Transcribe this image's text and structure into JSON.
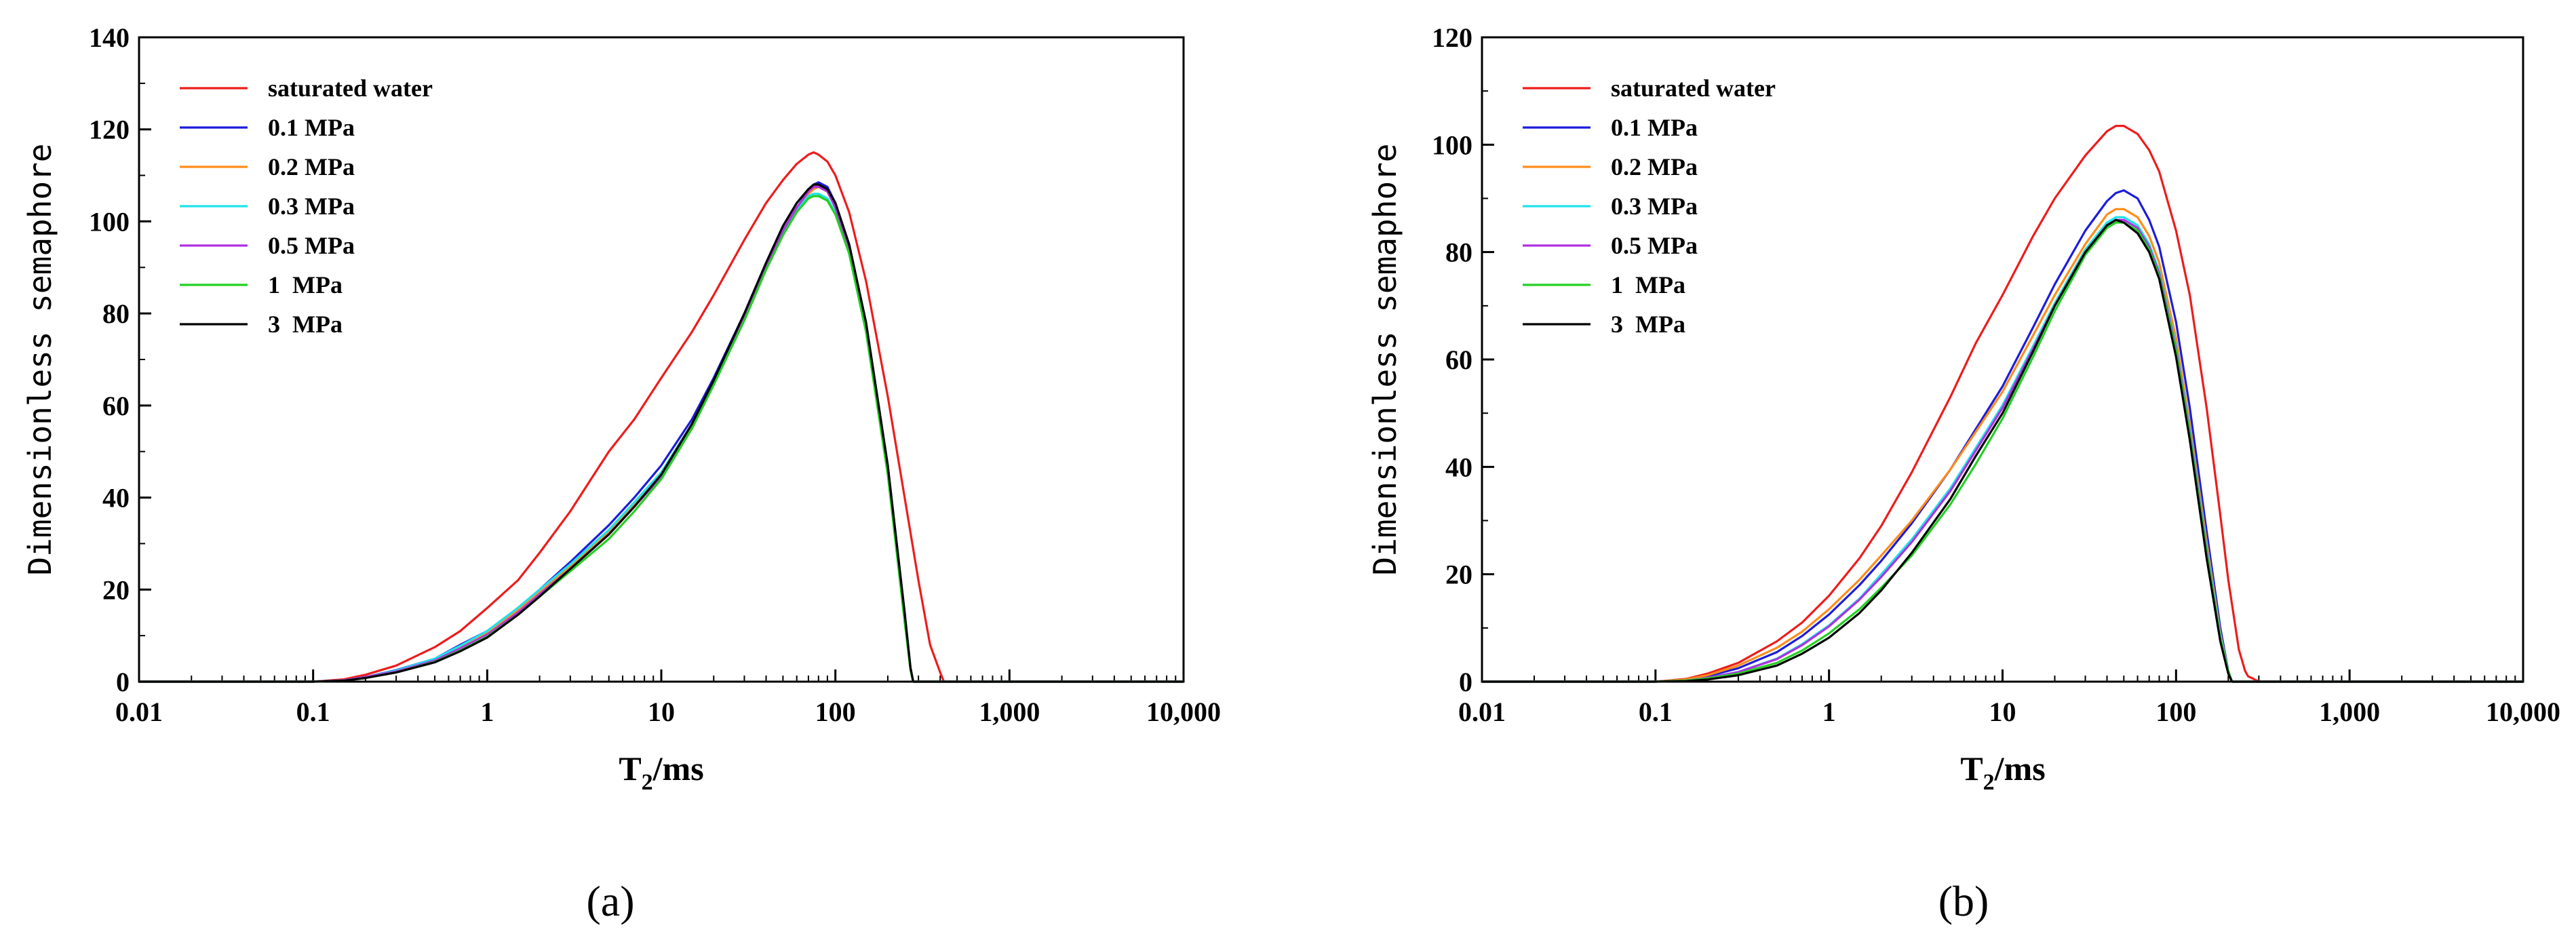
{
  "chart_data": [
    {
      "type": "line",
      "panel_label": "(a)",
      "xscale": "log",
      "xlim": [
        0.01,
        10000
      ],
      "ylim": [
        0,
        140
      ],
      "xlabel": "T2/ms",
      "xlabel_main": "T",
      "xlabel_sub": "2",
      "xlabel_rest": "/ms",
      "ylabel": "Dimensionless semaphore",
      "xticks": [
        0.01,
        0.1,
        1,
        10,
        100,
        1000,
        10000
      ],
      "xtick_labels": [
        "0.01",
        "0.1",
        "1",
        "10",
        "100",
        "1,000",
        "10,000"
      ],
      "yticks": [
        0,
        20,
        40,
        60,
        80,
        100,
        120,
        140
      ],
      "ytick_labels": [
        "0",
        "20",
        "40",
        "60",
        "80",
        "100",
        "120",
        "140"
      ],
      "legend_position": "top-left",
      "series": [
        {
          "name": "saturated water",
          "color": "#ee1c1c",
          "x": [
            0.01,
            0.1,
            0.15,
            0.2,
            0.3,
            0.5,
            0.7,
            1,
            1.5,
            2,
            3,
            5,
            7,
            10,
            15,
            20,
            30,
            40,
            50,
            60,
            70,
            75,
            80,
            90,
            100,
            120,
            150,
            200,
            250,
            300,
            350,
            400,
            420,
            500,
            1000,
            10000
          ],
          "y": [
            0,
            0,
            0.5,
            1.5,
            3.5,
            7.5,
            11,
            16,
            22,
            28,
            37,
            50,
            57,
            66,
            76,
            84,
            96,
            104,
            109,
            112.5,
            114.5,
            115,
            114.5,
            113,
            110,
            102,
            87,
            62,
            40,
            22,
            8,
            2,
            0,
            0,
            0,
            0
          ]
        },
        {
          "name": "0.1 MPa",
          "color": "#1c1cdc",
          "x": [
            0.01,
            0.1,
            0.15,
            0.2,
            0.3,
            0.5,
            0.7,
            1,
            1.5,
            2,
            3,
            5,
            7,
            10,
            15,
            20,
            30,
            40,
            50,
            60,
            70,
            75,
            80,
            90,
            100,
            120,
            150,
            200,
            250,
            270,
            280,
            300,
            1000,
            10000
          ],
          "y": [
            0,
            0,
            0.3,
            1,
            2.5,
            5,
            8,
            11,
            16,
            20,
            26,
            34,
            40,
            47,
            57,
            66,
            80,
            91,
            99,
            104,
            107,
            108,
            108.5,
            107.5,
            104,
            95,
            78,
            47,
            15,
            3,
            0,
            0,
            0,
            0
          ]
        },
        {
          "name": "0.2 MPa",
          "color": "#ff8c1a",
          "x": [
            0.01,
            0.1,
            0.15,
            0.2,
            0.3,
            0.5,
            0.7,
            1,
            1.5,
            2,
            3,
            5,
            7,
            10,
            15,
            20,
            30,
            40,
            50,
            60,
            70,
            75,
            80,
            90,
            100,
            120,
            150,
            200,
            250,
            270,
            280,
            300,
            1000,
            10000
          ],
          "y": [
            0,
            0,
            0.3,
            1,
            2.3,
            4.8,
            7.5,
            10.5,
            15.5,
            19.5,
            25,
            32.5,
            38.5,
            45,
            55.5,
            65,
            79,
            90,
            98,
            103,
            106,
            107,
            107.5,
            106.5,
            103,
            94,
            77,
            46,
            14,
            3,
            0,
            0,
            0,
            0
          ]
        },
        {
          "name": "0.3 MPa",
          "color": "#1ee3e8",
          "x": [
            0.01,
            0.1,
            0.15,
            0.2,
            0.3,
            0.5,
            0.7,
            1,
            1.5,
            2,
            3,
            5,
            7,
            10,
            15,
            20,
            30,
            40,
            50,
            60,
            70,
            75,
            80,
            90,
            100,
            120,
            150,
            200,
            250,
            270,
            280,
            300,
            1000,
            10000
          ],
          "y": [
            0,
            0,
            0.3,
            1,
            2.4,
            5,
            7.8,
            11,
            16,
            20,
            25.5,
            33,
            39,
            45.5,
            56,
            65,
            79,
            90,
            97.5,
            102.5,
            105.5,
            106,
            106,
            105,
            102,
            93,
            76,
            46,
            14,
            3,
            0,
            0,
            0,
            0
          ]
        },
        {
          "name": "0.5 MPa",
          "color": "#b030e0",
          "x": [
            0.01,
            0.1,
            0.15,
            0.2,
            0.3,
            0.5,
            0.7,
            1,
            1.5,
            2,
            3,
            5,
            7,
            10,
            15,
            20,
            30,
            40,
            50,
            60,
            70,
            75,
            80,
            90,
            100,
            120,
            150,
            200,
            250,
            270,
            280,
            300,
            1000,
            10000
          ],
          "y": [
            0,
            0,
            0.3,
            1,
            2.2,
            4.6,
            7.2,
            10.2,
            15,
            19,
            24.5,
            32,
            38,
            44.5,
            55,
            64.5,
            79,
            90,
            98,
            103,
            106.5,
            107.5,
            107.5,
            106.5,
            103,
            94,
            77,
            46,
            14,
            3,
            0,
            0,
            0,
            0
          ]
        },
        {
          "name": "1  MPa",
          "color": "#22d022",
          "x": [
            0.01,
            0.1,
            0.15,
            0.2,
            0.3,
            0.5,
            0.7,
            1,
            1.5,
            2,
            3,
            5,
            7,
            10,
            15,
            20,
            30,
            40,
            50,
            60,
            70,
            75,
            80,
            90,
            100,
            120,
            150,
            200,
            250,
            270,
            280,
            300,
            1000,
            10000
          ],
          "y": [
            0,
            0,
            0.2,
            0.8,
            2,
            4.3,
            6.8,
            9.8,
            14.5,
            18.5,
            24,
            31,
            37,
            44,
            55,
            64.5,
            78.5,
            89.5,
            97,
            102,
            105,
            105.5,
            105.5,
            104.5,
            101.5,
            93,
            76,
            45,
            13,
            2.5,
            0,
            0,
            0,
            0
          ]
        },
        {
          "name": "3  MPa",
          "color": "#000000",
          "x": [
            0.01,
            0.1,
            0.15,
            0.2,
            0.3,
            0.5,
            0.7,
            1,
            1.5,
            2,
            3,
            5,
            7,
            10,
            15,
            20,
            30,
            40,
            50,
            60,
            70,
            75,
            80,
            90,
            100,
            120,
            150,
            200,
            250,
            270,
            280,
            300,
            1000,
            10000
          ],
          "y": [
            0,
            0,
            0.2,
            0.8,
            2,
            4.2,
            6.6,
            9.6,
            14.5,
            18.5,
            24.5,
            32,
            38,
            45,
            56,
            65.5,
            80,
            91,
            99,
            104,
            107,
            108,
            108,
            107,
            104,
            95,
            78,
            47,
            15,
            3,
            0,
            0,
            0,
            0
          ]
        }
      ]
    },
    {
      "type": "line",
      "panel_label": "(b)",
      "xscale": "log",
      "xlim": [
        0.01,
        10000
      ],
      "ylim": [
        0,
        120
      ],
      "xlabel": "T2/ms",
      "xlabel_main": "T",
      "xlabel_sub": "2",
      "xlabel_rest": "/ms",
      "ylabel": "Dimensionless semaphore",
      "xticks": [
        0.01,
        0.1,
        1,
        10,
        100,
        1000,
        10000
      ],
      "xtick_labels": [
        "0.01",
        "0.1",
        "1",
        "10",
        "100",
        "1,000",
        "10,000"
      ],
      "yticks": [
        0,
        20,
        40,
        60,
        80,
        100,
        120
      ],
      "ytick_labels": [
        "0",
        "20",
        "40",
        "60",
        "80",
        "100",
        "120"
      ],
      "legend_position": "top-left",
      "series": [
        {
          "name": "saturated water",
          "color": "#ee1c1c",
          "x": [
            0.01,
            0.1,
            0.15,
            0.2,
            0.3,
            0.5,
            0.7,
            1,
            1.5,
            2,
            3,
            5,
            7,
            10,
            15,
            20,
            30,
            40,
            45,
            50,
            60,
            70,
            80,
            100,
            120,
            150,
            180,
            200,
            230,
            250,
            260,
            280,
            300,
            1000,
            10000
          ],
          "y": [
            0,
            0,
            0.5,
            1.5,
            3.5,
            7.5,
            11,
            16,
            23,
            29,
            39,
            53,
            63,
            72,
            83,
            90,
            98,
            102.5,
            103.5,
            103.5,
            102,
            99,
            95,
            84,
            72,
            51,
            31,
            19,
            6,
            2,
            1,
            0.5,
            0,
            0,
            0
          ]
        },
        {
          "name": "0.1 MPa",
          "color": "#1c1cdc",
          "x": [
            0.01,
            0.1,
            0.15,
            0.2,
            0.3,
            0.5,
            0.7,
            1,
            1.5,
            2,
            3,
            5,
            7,
            10,
            15,
            20,
            30,
            40,
            45,
            50,
            60,
            70,
            80,
            100,
            120,
            150,
            180,
            200,
            210,
            1000,
            10000
          ],
          "y": [
            0,
            0,
            0.3,
            1,
            2.5,
            5.5,
            8.5,
            12.5,
            18,
            22.5,
            29.5,
            39.5,
            47,
            55,
            66,
            74,
            84,
            89.5,
            91,
            91.5,
            90,
            86,
            81,
            67,
            51,
            28,
            10,
            2,
            0,
            0,
            0
          ]
        },
        {
          "name": "0.2 MPa",
          "color": "#ff8c1a",
          "x": [
            0.01,
            0.1,
            0.15,
            0.2,
            0.3,
            0.5,
            0.7,
            1,
            1.5,
            2,
            3,
            5,
            7,
            10,
            15,
            20,
            30,
            40,
            45,
            50,
            60,
            70,
            80,
            100,
            120,
            150,
            180,
            200,
            210,
            1000,
            10000
          ],
          "y": [
            0,
            0,
            0.4,
            1.2,
            3,
            6.3,
            9.3,
            13.5,
            19,
            23.5,
            30,
            39.5,
            46.5,
            54,
            64.5,
            72,
            81.5,
            87,
            88,
            88,
            86.5,
            83,
            78,
            64,
            48,
            26,
            9,
            2,
            0,
            0,
            0
          ]
        },
        {
          "name": "0.3 MPa",
          "color": "#1ee3e8",
          "x": [
            0.01,
            0.1,
            0.15,
            0.2,
            0.3,
            0.5,
            0.7,
            1,
            1.5,
            2,
            3,
            5,
            7,
            10,
            15,
            20,
            30,
            40,
            45,
            50,
            60,
            70,
            80,
            100,
            120,
            150,
            180,
            200,
            210,
            1000,
            10000
          ],
          "y": [
            0,
            0,
            0.2,
            0.7,
            1.8,
            4.3,
            7,
            10.5,
            15.5,
            20,
            26.5,
            36,
            43.5,
            51.5,
            62.5,
            70.5,
            80.5,
            85.5,
            86.5,
            86.5,
            85,
            81.5,
            76.5,
            62.5,
            47,
            25,
            8.5,
            2,
            0,
            0,
            0
          ]
        },
        {
          "name": "0.5 MPa",
          "color": "#b030e0",
          "x": [
            0.01,
            0.1,
            0.15,
            0.2,
            0.3,
            0.5,
            0.7,
            1,
            1.5,
            2,
            3,
            5,
            7,
            10,
            15,
            20,
            30,
            40,
            45,
            50,
            60,
            70,
            80,
            100,
            120,
            150,
            180,
            200,
            210,
            1000,
            10000
          ],
          "y": [
            0,
            0,
            0.2,
            0.7,
            1.8,
            4.2,
            6.8,
            10.3,
            15.3,
            19.5,
            26,
            35.5,
            43,
            51,
            62,
            70,
            80,
            85,
            86,
            86,
            84.5,
            81,
            76,
            62,
            46.5,
            24.5,
            8,
            2,
            0,
            0,
            0
          ]
        },
        {
          "name": "1  MPa",
          "color": "#22d022",
          "x": [
            0.01,
            0.1,
            0.15,
            0.2,
            0.3,
            0.5,
            0.7,
            1,
            1.5,
            2,
            3,
            5,
            7,
            10,
            15,
            20,
            30,
            40,
            45,
            50,
            60,
            70,
            80,
            100,
            120,
            150,
            180,
            200,
            210,
            1000,
            10000
          ],
          "y": [
            0,
            0,
            0.2,
            0.6,
            1.5,
            3.5,
            5.8,
            9,
            13.5,
            17.5,
            23.5,
            33,
            40.5,
            49,
            60.5,
            69,
            79.5,
            84.5,
            85.5,
            85.5,
            84,
            80.5,
            75.5,
            61.5,
            46,
            24,
            8,
            2,
            0,
            0,
            0
          ]
        },
        {
          "name": "3  MPa",
          "color": "#000000",
          "x": [
            0.01,
            0.1,
            0.15,
            0.2,
            0.3,
            0.5,
            0.7,
            1,
            1.5,
            2,
            3,
            5,
            7,
            10,
            15,
            20,
            30,
            40,
            45,
            50,
            60,
            70,
            80,
            100,
            120,
            150,
            180,
            200,
            210,
            1000,
            10000
          ],
          "y": [
            0,
            0,
            0.1,
            0.4,
            1.2,
            3,
            5.2,
            8.2,
            12.8,
            17,
            24,
            34,
            42,
            50,
            61.5,
            70,
            80,
            85,
            86,
            85.5,
            83.5,
            80,
            75,
            60.5,
            45,
            23,
            7.5,
            1.5,
            0,
            0,
            0
          ]
        }
      ]
    }
  ]
}
